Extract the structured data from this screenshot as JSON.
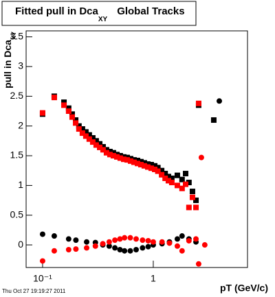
{
  "chart_data": {
    "type": "scatter",
    "title": "Fitted pull in Dca",
    "title_subscript": "XY",
    "title_suffix": "Global Tracks",
    "y_label": "pull in Dca",
    "y_label_subscript": "XY",
    "x_label": "pT (GeV/c)",
    "timestamp": "Thu Oct 27 19:19:27 2011",
    "log_x": true,
    "xlim": [
      0.071,
      7.1
    ],
    "ylim": [
      -0.38,
      3.6
    ],
    "xticks": [
      {
        "value": 0.1,
        "label": "10⁻¹"
      },
      1
    ],
    "yticks": [
      0,
      0.5,
      1,
      1.5,
      2,
      2.5,
      3,
      3.5
    ],
    "series": [
      {
        "name": "black squares",
        "marker": "square",
        "color": "#000000",
        "x": [
          0.1,
          0.1275,
          0.156,
          0.172,
          0.185,
          0.199,
          0.213,
          0.229,
          0.246,
          0.264,
          0.284,
          0.305,
          0.328,
          0.352,
          0.378,
          0.406,
          0.436,
          0.469,
          0.503,
          0.541,
          0.581,
          0.624,
          0.67,
          0.72,
          0.773,
          0.83,
          0.892,
          0.958,
          1.03,
          1.1,
          1.19,
          1.28,
          1.37,
          1.47,
          1.65,
          1.82,
          1.96,
          2.1,
          2.26,
          2.43,
          2.57,
          3.52
        ],
        "values": [
          2.2,
          2.5,
          2.4,
          2.3,
          2.2,
          2.1,
          2.0,
          1.95,
          1.9,
          1.85,
          1.8,
          1.75,
          1.7,
          1.65,
          1.6,
          1.57,
          1.55,
          1.52,
          1.5,
          1.48,
          1.47,
          1.45,
          1.43,
          1.42,
          1.4,
          1.38,
          1.36,
          1.35,
          1.33,
          1.3,
          1.25,
          1.2,
          1.15,
          1.12,
          1.17,
          1.1,
          1.2,
          1.05,
          0.9,
          0.75,
          2.35,
          2.1
        ]
      },
      {
        "name": "red squares",
        "marker": "square",
        "color": "#ff0000",
        "x": [
          0.1,
          0.1275,
          0.156,
          0.172,
          0.185,
          0.199,
          0.213,
          0.229,
          0.246,
          0.264,
          0.284,
          0.305,
          0.328,
          0.352,
          0.378,
          0.406,
          0.436,
          0.469,
          0.503,
          0.541,
          0.581,
          0.624,
          0.67,
          0.72,
          0.773,
          0.83,
          0.892,
          0.958,
          1.03,
          1.1,
          1.19,
          1.28,
          1.37,
          1.47,
          1.65,
          1.82,
          1.96,
          2.1,
          2.26,
          2.43,
          2.57
        ],
        "values": [
          2.22,
          2.48,
          2.35,
          2.25,
          2.15,
          2.05,
          1.95,
          1.88,
          1.83,
          1.78,
          1.73,
          1.68,
          1.64,
          1.6,
          1.55,
          1.52,
          1.5,
          1.48,
          1.46,
          1.44,
          1.43,
          1.41,
          1.39,
          1.37,
          1.35,
          1.33,
          1.31,
          1.29,
          1.27,
          1.24,
          1.18,
          1.12,
          1.08,
          1.05,
          1.0,
          0.95,
          1.02,
          0.63,
          0.8,
          0.63,
          2.38
        ]
      },
      {
        "name": "black circles",
        "marker": "circle",
        "color": "#000000",
        "x": [
          0.1,
          0.1275,
          0.172,
          0.2,
          0.25,
          0.3,
          0.35,
          0.4,
          0.45,
          0.5,
          0.55,
          0.62,
          0.7,
          0.8,
          0.9,
          1.0,
          1.2,
          1.4,
          1.65,
          1.82,
          2.1,
          2.43,
          3.95
        ],
        "values": [
          0.18,
          0.15,
          0.1,
          0.08,
          0.05,
          0.04,
          0.0,
          -0.02,
          -0.05,
          -0.08,
          -0.1,
          -0.1,
          -0.08,
          -0.05,
          -0.03,
          0.0,
          0.02,
          0.05,
          0.1,
          0.15,
          0.1,
          0.05,
          2.42
        ]
      },
      {
        "name": "red circles",
        "marker": "circle",
        "color": "#ff0000",
        "x": [
          0.1,
          0.1275,
          0.172,
          0.2,
          0.25,
          0.3,
          0.35,
          0.4,
          0.45,
          0.5,
          0.55,
          0.62,
          0.7,
          0.8,
          0.9,
          1.0,
          1.2,
          1.4,
          1.65,
          1.82,
          2.1,
          2.43,
          2.57,
          2.72,
          2.92
        ],
        "values": [
          -0.27,
          -0.1,
          -0.08,
          -0.07,
          -0.05,
          -0.02,
          0.02,
          0.05,
          0.08,
          0.1,
          0.12,
          0.12,
          0.1,
          0.08,
          0.07,
          0.05,
          0.05,
          0.03,
          -0.02,
          -0.1,
          0.07,
          0.1,
          -0.32,
          1.47,
          0.0
        ]
      }
    ]
  }
}
